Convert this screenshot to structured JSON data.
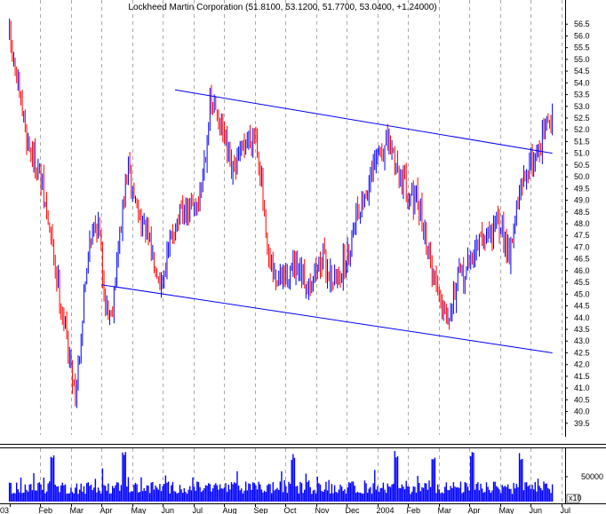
{
  "chart_data": {
    "type": "candlestick",
    "title": "Lockheed Martin Corporation (51.8100, 53.1200, 51.7700, 53.0400, +1.24000)",
    "price_axis": {
      "min": 39.0,
      "max": 57.0,
      "ticks": [
        "39.5",
        "40.0",
        "40.5",
        "41.0",
        "41.5",
        "42.0",
        "42.5",
        "43.0",
        "43.5",
        "44.0",
        "44.5",
        "45.0",
        "45.5",
        "46.0",
        "46.5",
        "47.0",
        "47.5",
        "48.0",
        "48.5",
        "49.0",
        "49.5",
        "50.0",
        "50.5",
        "51.0",
        "51.5",
        "52.0",
        "52.5",
        "53.0",
        "53.5",
        "54.0",
        "54.5",
        "55.0",
        "55.5",
        "56.0",
        "56.5"
      ]
    },
    "volume_axis": {
      "ticks": [
        "50000"
      ],
      "unit_label": "x10"
    },
    "x_axis": {
      "labels": [
        "03",
        "Feb",
        "Mar",
        "Apr",
        "May",
        "Jun",
        "Jul",
        "Aug",
        "Sep",
        "Oct",
        "Nov",
        "Dec",
        "2004",
        "Feb",
        "Mar",
        "Apr",
        "May",
        "Jun",
        "Jul"
      ]
    },
    "price_path": [
      {
        "m": 0.0,
        "p": 56.0
      },
      {
        "m": 0.3,
        "p": 53.5
      },
      {
        "m": 0.6,
        "p": 51.5
      },
      {
        "m": 1.0,
        "p": 50.0
      },
      {
        "m": 1.4,
        "p": 47.0
      },
      {
        "m": 1.7,
        "p": 44.5
      },
      {
        "m": 2.0,
        "p": 42.0
      },
      {
        "m": 2.15,
        "p": 40.8
      },
      {
        "m": 2.35,
        "p": 43.5
      },
      {
        "m": 2.6,
        "p": 47.5
      },
      {
        "m": 2.9,
        "p": 48.0
      },
      {
        "m": 3.1,
        "p": 45.0
      },
      {
        "m": 3.3,
        "p": 44.0
      },
      {
        "m": 3.6,
        "p": 47.5
      },
      {
        "m": 3.85,
        "p": 50.3
      },
      {
        "m": 4.2,
        "p": 48.5
      },
      {
        "m": 4.6,
        "p": 47.0
      },
      {
        "m": 4.95,
        "p": 45.5
      },
      {
        "m": 5.4,
        "p": 48.0
      },
      {
        "m": 5.8,
        "p": 48.5
      },
      {
        "m": 6.2,
        "p": 49.0
      },
      {
        "m": 6.55,
        "p": 53.0
      },
      {
        "m": 6.85,
        "p": 52.5
      },
      {
        "m": 7.25,
        "p": 50.0
      },
      {
        "m": 7.7,
        "p": 51.5
      },
      {
        "m": 8.0,
        "p": 52.0
      },
      {
        "m": 8.2,
        "p": 50.0
      },
      {
        "m": 8.4,
        "p": 46.5
      },
      {
        "m": 8.7,
        "p": 45.5
      },
      {
        "m": 9.2,
        "p": 46.0
      },
      {
        "m": 9.7,
        "p": 45.5
      },
      {
        "m": 10.2,
        "p": 46.5
      },
      {
        "m": 10.6,
        "p": 45.5
      },
      {
        "m": 11.0,
        "p": 46.5
      },
      {
        "m": 11.3,
        "p": 48.5
      },
      {
        "m": 11.7,
        "p": 49.5
      },
      {
        "m": 12.0,
        "p": 51.0
      },
      {
        "m": 12.4,
        "p": 51.3
      },
      {
        "m": 12.7,
        "p": 50.2
      },
      {
        "m": 13.0,
        "p": 49.5
      },
      {
        "m": 13.4,
        "p": 48.5
      },
      {
        "m": 13.7,
        "p": 46.5
      },
      {
        "m": 14.0,
        "p": 45.0
      },
      {
        "m": 14.3,
        "p": 44.3
      },
      {
        "m": 14.6,
        "p": 45.5
      },
      {
        "m": 14.9,
        "p": 46.0
      },
      {
        "m": 15.2,
        "p": 47.0
      },
      {
        "m": 15.6,
        "p": 47.5
      },
      {
        "m": 16.0,
        "p": 48.0
      },
      {
        "m": 16.3,
        "p": 46.8
      },
      {
        "m": 16.6,
        "p": 49.0
      },
      {
        "m": 16.9,
        "p": 50.5
      },
      {
        "m": 17.2,
        "p": 51.0
      },
      {
        "m": 17.5,
        "p": 52.2
      },
      {
        "m": 17.7,
        "p": 52.0
      }
    ],
    "last_bar": {
      "open": 51.81,
      "high": 53.12,
      "low": 51.77,
      "close": 53.04,
      "change": 1.24
    },
    "trend_lines": [
      {
        "name": "upper channel",
        "start": {
          "m": 5.4,
          "p": 53.7
        },
        "end": {
          "m": 17.7,
          "p": 51.0
        }
      },
      {
        "name": "lower channel",
        "start": {
          "m": 3.0,
          "p": 45.4
        },
        "end": {
          "m": 17.7,
          "p": 42.5
        }
      }
    ],
    "grid": {
      "vertical": true,
      "horizontal": false,
      "style": "dashed"
    },
    "colors": {
      "up": "#0000ff",
      "down": "#ff0000",
      "trend": "#0000ff",
      "volume": "#0000ff",
      "grid": "#aaaaaa"
    }
  }
}
